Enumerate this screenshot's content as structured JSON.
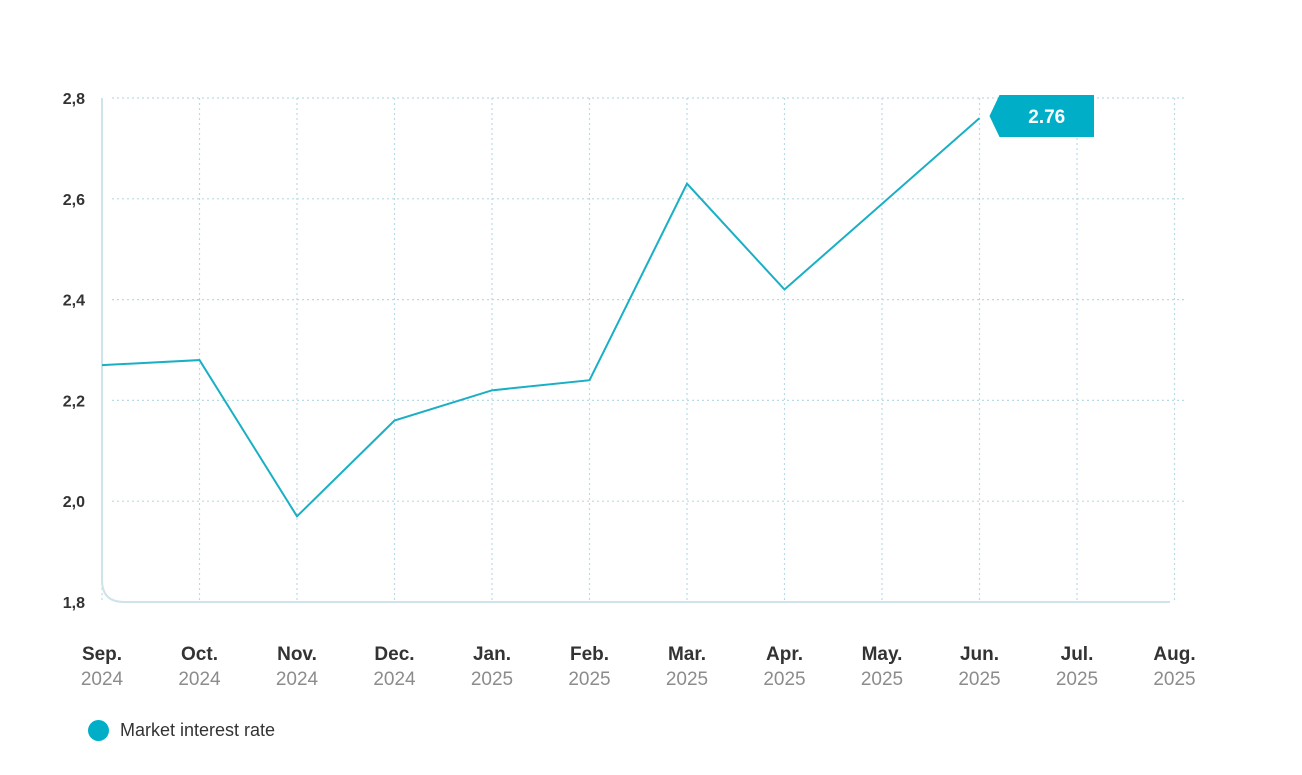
{
  "colors": {
    "line": "#1aafc4",
    "callout": "#00aec7",
    "grid": "#b9dbe6",
    "axis": "#cfe3ea"
  },
  "chart_data": {
    "type": "line",
    "categories": [
      {
        "month": "Sep.",
        "year": "2024"
      },
      {
        "month": "Oct.",
        "year": "2024"
      },
      {
        "month": "Nov.",
        "year": "2024"
      },
      {
        "month": "Dec.",
        "year": "2024"
      },
      {
        "month": "Jan.",
        "year": "2025"
      },
      {
        "month": "Feb.",
        "year": "2025"
      },
      {
        "month": "Mar.",
        "year": "2025"
      },
      {
        "month": "Apr.",
        "year": "2025"
      },
      {
        "month": "May.",
        "year": "2025"
      },
      {
        "month": "Jun.",
        "year": "2025"
      },
      {
        "month": "Jul.",
        "year": "2025"
      },
      {
        "month": "Aug.",
        "year": "2025"
      }
    ],
    "series": [
      {
        "name": "Market interest rate",
        "values": [
          2.27,
          2.28,
          1.97,
          2.16,
          2.22,
          2.24,
          2.63,
          2.42,
          2.59,
          2.76,
          null,
          null
        ]
      }
    ],
    "yticks": [
      {
        "value": 1.8,
        "label": "1,8"
      },
      {
        "value": 2.0,
        "label": "2,0"
      },
      {
        "value": 2.2,
        "label": "2,2"
      },
      {
        "value": 2.4,
        "label": "2,4"
      },
      {
        "value": 2.6,
        "label": "2,6"
      },
      {
        "value": 2.8,
        "label": "2,8"
      }
    ],
    "ylim": [
      1.8,
      2.8
    ],
    "grid": true,
    "legend_position": "bottom-left",
    "callout": {
      "label": "2.76",
      "category_index": 9
    }
  },
  "legend": {
    "label": "Market interest rate"
  }
}
